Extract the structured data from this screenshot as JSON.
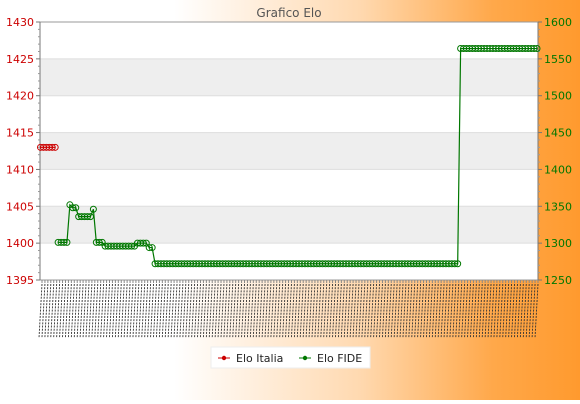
{
  "chart_data": {
    "type": "line",
    "title": "Grafico Elo",
    "y_left": {
      "range": [
        1395,
        1430
      ],
      "ticks": [
        1395,
        1400,
        1405,
        1410,
        1415,
        1420,
        1425,
        1430
      ],
      "color": "#cc0000"
    },
    "y_right": {
      "range": [
        1250,
        1600
      ],
      "ticks": [
        1250,
        1300,
        1350,
        1400,
        1450,
        1500,
        1550,
        1600
      ],
      "color": "#007700"
    },
    "grid": "horizontal bands",
    "legend_position": "bottom-center",
    "series": [
      {
        "name": "Elo Italia",
        "axis": "left",
        "color": "#cc0000",
        "start_index": 0,
        "values": [
          1413,
          1413,
          1413,
          1413,
          1413,
          1413
        ]
      },
      {
        "name": "Elo FIDE",
        "axis": "right",
        "color": "#007700",
        "start_index": 6,
        "values": [
          1301,
          1301,
          1301,
          1301,
          1352,
          1348,
          1348,
          1336,
          1336,
          1336,
          1336,
          1336,
          1346,
          1301,
          1301,
          1301,
          1296,
          1296,
          1296,
          1296,
          1296,
          1296,
          1296,
          1296,
          1296,
          1296,
          1296,
          1300,
          1300,
          1300,
          1300,
          1294,
          1294,
          1272,
          1272,
          1272,
          1272,
          1272,
          1272,
          1272,
          1272,
          1272,
          1272,
          1272,
          1272,
          1272,
          1272,
          1272,
          1272,
          1272,
          1272,
          1272,
          1272,
          1272,
          1272,
          1272,
          1272,
          1272,
          1272,
          1272,
          1272,
          1272,
          1272,
          1272,
          1272,
          1272,
          1272,
          1272,
          1272,
          1272,
          1272,
          1272,
          1272,
          1272,
          1272,
          1272,
          1272,
          1272,
          1272,
          1272,
          1272,
          1272,
          1272,
          1272,
          1272,
          1272,
          1272,
          1272,
          1272,
          1272,
          1272,
          1272,
          1272,
          1272,
          1272,
          1272,
          1272,
          1272,
          1272,
          1272,
          1272,
          1272,
          1272,
          1272,
          1272,
          1272,
          1272,
          1272,
          1272,
          1272,
          1272,
          1272,
          1272,
          1272,
          1272,
          1272,
          1272,
          1272,
          1272,
          1272,
          1272,
          1272,
          1272,
          1272,
          1272,
          1272,
          1272,
          1272,
          1272,
          1272,
          1272,
          1272,
          1272,
          1272,
          1272,
          1272,
          1272,
          1564,
          1564,
          1564,
          1564,
          1564,
          1564,
          1564,
          1564,
          1564,
          1564,
          1564,
          1564,
          1564,
          1564,
          1564,
          1564,
          1564,
          1564,
          1564,
          1564,
          1564,
          1564,
          1564,
          1564,
          1564,
          1564,
          1564
        ]
      }
    ],
    "x_tick_count": 170
  }
}
